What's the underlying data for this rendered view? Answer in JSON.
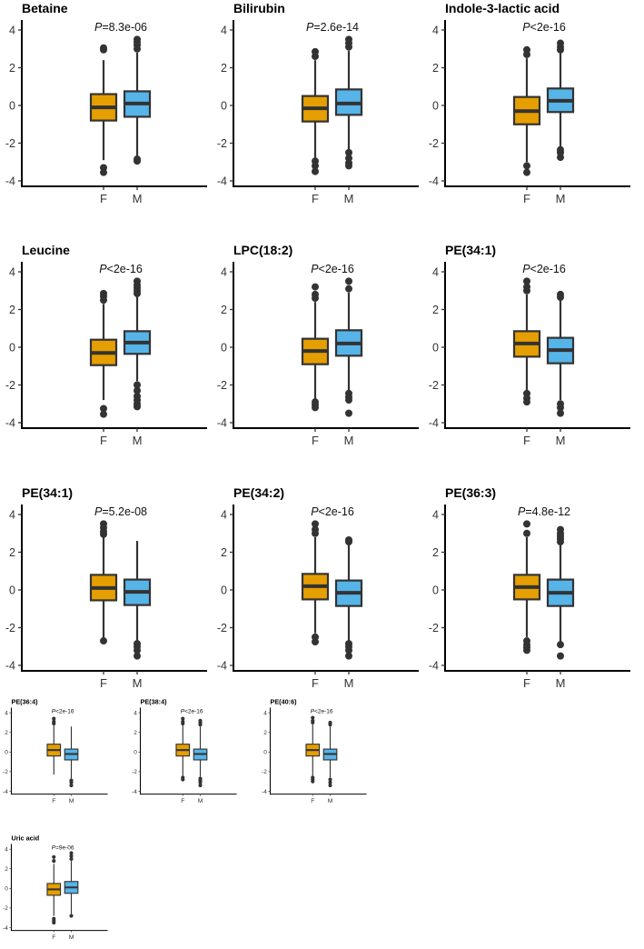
{
  "figure": {
    "description_colors": {
      "female": "#E69F00",
      "male": "#56B4E9",
      "ink": "#333333"
    }
  },
  "chart_data": [
    {
      "type": "box",
      "title": "Betaine",
      "p_prefix": "P",
      "p_text": "=8.3e-06",
      "categories": [
        "F",
        "M"
      ],
      "yticks": [
        4,
        2,
        0,
        -2,
        -4
      ],
      "ylim": [
        -4.2,
        4.4
      ],
      "boxes": [
        {
          "q1": -0.8,
          "median": -0.1,
          "q3": 0.6,
          "low": -2.9,
          "high": 2.4,
          "outliers": [
            2.95,
            3.05,
            -3.3,
            -3.55
          ]
        },
        {
          "q1": -0.6,
          "median": 0.1,
          "q3": 0.75,
          "low": -2.7,
          "high": 2.8,
          "outliers": [
            3.0,
            3.2,
            3.35,
            3.5,
            -2.85,
            -2.95
          ]
        }
      ]
    },
    {
      "type": "box",
      "title": "Bilirubin",
      "p_prefix": "P",
      "p_text": "=2.6e-14",
      "categories": [
        "F",
        "M"
      ],
      "yticks": [
        4,
        2,
        0,
        -2,
        -4
      ],
      "ylim": [
        -4.2,
        4.4
      ],
      "boxes": [
        {
          "q1": -0.85,
          "median": -0.15,
          "q3": 0.5,
          "low": -2.8,
          "high": 2.4,
          "outliers": [
            2.6,
            2.85,
            -2.95,
            -3.2,
            -3.5
          ]
        },
        {
          "q1": -0.5,
          "median": 0.1,
          "q3": 0.85,
          "low": -2.4,
          "high": 2.9,
          "outliers": [
            3.1,
            3.3,
            3.5,
            -2.5,
            -2.8,
            -3.05,
            -3.2
          ]
        }
      ]
    },
    {
      "type": "box",
      "title": "Indole-3-lactic acid",
      "p_prefix": "P",
      "p_text": "<2e-16",
      "categories": [
        "F",
        "M"
      ],
      "yticks": [
        4,
        2,
        0,
        -2,
        -4
      ],
      "ylim": [
        -4.2,
        4.4
      ],
      "boxes": [
        {
          "q1": -1.0,
          "median": -0.3,
          "q3": 0.45,
          "low": -3.0,
          "high": 2.5,
          "outliers": [
            2.7,
            2.95,
            -3.2,
            -3.55
          ]
        },
        {
          "q1": -0.35,
          "median": 0.25,
          "q3": 0.9,
          "low": -2.2,
          "high": 2.8,
          "outliers": [
            2.95,
            3.1,
            3.3,
            -2.35,
            -2.5,
            -2.75
          ]
        }
      ]
    },
    {
      "type": "box",
      "title": "Leucine",
      "p_prefix": "P",
      "p_text": "<2e-16",
      "categories": [
        "F",
        "M"
      ],
      "yticks": [
        4,
        2,
        0,
        -2,
        -4
      ],
      "ylim": [
        -4.2,
        4.4
      ],
      "boxes": [
        {
          "q1": -0.95,
          "median": -0.3,
          "q3": 0.4,
          "low": -2.8,
          "high": 2.3,
          "outliers": [
            2.5,
            2.7,
            2.85,
            -3.25,
            -3.55
          ]
        },
        {
          "q1": -0.35,
          "median": 0.25,
          "q3": 0.85,
          "low": -1.8,
          "high": 2.7,
          "outliers": [
            2.85,
            3.0,
            3.15,
            3.3,
            3.5,
            -2.0,
            -2.3,
            -2.6,
            -2.8,
            -3.0,
            -3.15
          ]
        }
      ]
    },
    {
      "type": "box",
      "title": "LPC(18:2)",
      "p_prefix": "P",
      "p_text": "<2e-16",
      "categories": [
        "F",
        "M"
      ],
      "yticks": [
        4,
        2,
        0,
        -2,
        -4
      ],
      "ylim": [
        -4.2,
        4.4
      ],
      "boxes": [
        {
          "q1": -0.9,
          "median": -0.2,
          "q3": 0.45,
          "low": -2.8,
          "high": 2.4,
          "outliers": [
            2.6,
            2.8,
            3.2,
            -2.9,
            -3.05,
            -3.2
          ]
        },
        {
          "q1": -0.45,
          "median": 0.2,
          "q3": 0.9,
          "low": -2.3,
          "high": 2.9,
          "outliers": [
            3.1,
            3.5,
            -2.45,
            -2.65,
            -2.8,
            -3.5
          ]
        }
      ]
    },
    {
      "type": "box",
      "title": "PE(34:1)",
      "p_prefix": "P",
      "p_text": "<2e-16",
      "categories": [
        "F",
        "M"
      ],
      "yticks": [
        4,
        2,
        0,
        -2,
        -4
      ],
      "ylim": [
        -4.2,
        4.4
      ],
      "boxes": [
        {
          "q1": -0.5,
          "median": 0.2,
          "q3": 0.85,
          "low": -2.3,
          "high": 2.8,
          "outliers": [
            3.0,
            3.2,
            3.5,
            -2.45,
            -2.7,
            -2.9
          ]
        },
        {
          "q1": -0.85,
          "median": -0.15,
          "q3": 0.5,
          "low": -2.8,
          "high": 2.5,
          "outliers": [
            2.65,
            2.8,
            -3.0,
            -3.2,
            -3.5
          ]
        }
      ]
    },
    {
      "type": "box",
      "title": "PE(34:1)",
      "p_prefix": "P",
      "p_text": "=5.2e-08",
      "categories": [
        "F",
        "M"
      ],
      "yticks": [
        4,
        2,
        0,
        -2,
        -4
      ],
      "ylim": [
        -4.2,
        4.4
      ],
      "boxes": [
        {
          "q1": -0.55,
          "median": 0.1,
          "q3": 0.8,
          "low": -2.6,
          "high": 2.8,
          "outliers": [
            2.95,
            3.1,
            3.3,
            3.5,
            -2.7
          ]
        },
        {
          "q1": -0.8,
          "median": -0.1,
          "q3": 0.55,
          "low": -2.7,
          "high": 2.6,
          "outliers": [
            -2.85,
            -3.0,
            -3.2,
            -3.5
          ]
        }
      ]
    },
    {
      "type": "box",
      "title": "PE(34:2)",
      "p_prefix": "P",
      "p_text": "<2e-16",
      "categories": [
        "F",
        "M"
      ],
      "yticks": [
        4,
        2,
        0,
        -2,
        -4
      ],
      "ylim": [
        -4.2,
        4.4
      ],
      "boxes": [
        {
          "q1": -0.5,
          "median": 0.2,
          "q3": 0.85,
          "low": -2.3,
          "high": 2.8,
          "outliers": [
            3.0,
            3.2,
            3.5,
            -2.5,
            -2.75
          ]
        },
        {
          "q1": -0.85,
          "median": -0.15,
          "q3": 0.5,
          "low": -2.7,
          "high": 2.4,
          "outliers": [
            2.55,
            2.65,
            -2.85,
            -3.0,
            -3.2,
            -3.5
          ]
        }
      ]
    },
    {
      "type": "box",
      "title": "PE(36:3)",
      "p_prefix": "P",
      "p_text": "=4.8e-12",
      "categories": [
        "F",
        "M"
      ],
      "yticks": [
        4,
        2,
        0,
        -2,
        -4
      ],
      "ylim": [
        -4.2,
        4.4
      ],
      "boxes": [
        {
          "q1": -0.5,
          "median": 0.15,
          "q3": 0.8,
          "low": -2.5,
          "high": 2.8,
          "outliers": [
            3.0,
            3.5,
            -2.7,
            -2.9,
            -3.05,
            -3.2
          ]
        },
        {
          "q1": -0.85,
          "median": -0.15,
          "q3": 0.55,
          "low": -2.8,
          "high": 2.4,
          "outliers": [
            2.55,
            2.7,
            2.85,
            3.0,
            3.2,
            -2.9,
            -3.5
          ]
        }
      ]
    },
    {
      "type": "box",
      "title": "PE(36:4)",
      "p_prefix": "P",
      "p_text": "<2e-16",
      "categories": [
        "F",
        "M"
      ],
      "yticks": [
        4,
        2,
        0,
        -2,
        -4
      ],
      "ylim": [
        -4.2,
        4.4
      ],
      "boxes": [
        {
          "q1": -0.4,
          "median": 0.2,
          "q3": 0.8,
          "low": -2.3,
          "high": 2.7,
          "outliers": [
            2.9,
            3.1,
            3.4
          ]
        },
        {
          "q1": -0.8,
          "median": -0.2,
          "q3": 0.3,
          "low": -2.7,
          "high": 2.6,
          "outliers": [
            -2.9,
            -3.1,
            -3.4
          ]
        }
      ]
    },
    {
      "type": "box",
      "title": "PE(38:4)",
      "p_prefix": "P",
      "p_text": "<2e-16",
      "categories": [
        "F",
        "M"
      ],
      "yticks": [
        4,
        2,
        0,
        -2,
        -4
      ],
      "ylim": [
        -4.2,
        4.4
      ],
      "boxes": [
        {
          "q1": -0.4,
          "median": 0.2,
          "q3": 0.8,
          "low": -2.4,
          "high": 2.7,
          "outliers": [
            2.9,
            3.1,
            3.4,
            -2.6,
            -2.8
          ]
        },
        {
          "q1": -0.8,
          "median": -0.2,
          "q3": 0.3,
          "low": -2.5,
          "high": 2.6,
          "outliers": [
            2.8,
            3.0,
            3.2,
            -2.7,
            -2.9,
            -3.1,
            -3.4
          ]
        }
      ]
    },
    {
      "type": "box",
      "title": "PE(40:6)",
      "p_prefix": "P",
      "p_text": "<2e-16",
      "categories": [
        "F",
        "M"
      ],
      "yticks": [
        4,
        2,
        0,
        -2,
        -4
      ],
      "ylim": [
        -4.2,
        4.4
      ],
      "boxes": [
        {
          "q1": -0.4,
          "median": 0.2,
          "q3": 0.8,
          "low": -2.4,
          "high": 2.8,
          "outliers": [
            3.0,
            3.2,
            3.5,
            -2.6,
            -2.8,
            -3.0
          ]
        },
        {
          "q1": -0.8,
          "median": -0.2,
          "q3": 0.3,
          "low": -2.6,
          "high": 2.6,
          "outliers": [
            2.8,
            3.0,
            -2.8,
            -3.1,
            -3.4
          ]
        }
      ]
    },
    {
      "type": "box",
      "title": "Uric acid",
      "p_prefix": "P",
      "p_text": "=9e-06",
      "categories": [
        "F",
        "M"
      ],
      "yticks": [
        4,
        2,
        0,
        -2,
        -4
      ],
      "ylim": [
        -4.2,
        4.4
      ],
      "boxes": [
        {
          "q1": -0.7,
          "median": -0.1,
          "q3": 0.5,
          "low": -2.8,
          "high": 2.5,
          "outliers": [
            2.8,
            3.2,
            -3.1,
            -3.3,
            -3.5
          ]
        },
        {
          "q1": -0.5,
          "median": 0.1,
          "q3": 0.7,
          "low": -2.6,
          "high": 2.8,
          "outliers": [
            3.0,
            3.3,
            3.6,
            -2.8
          ]
        }
      ]
    }
  ]
}
